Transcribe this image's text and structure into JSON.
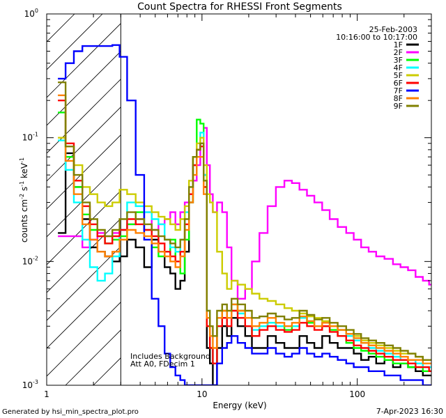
{
  "chart_data": {
    "type": "line",
    "title": "Count Spectra for RHESSI Front Segments",
    "xlabel": "Energy (keV)",
    "ylabel": "counts cm",
    "ylabel_sup1": "-2",
    "ylabel_mid": " s",
    "ylabel_sup2": "-1",
    "ylabel_mid2": " keV",
    "ylabel_sup3": "-1",
    "x_scale": "log",
    "y_scale": "log",
    "xlim": [
      1,
      300
    ],
    "ylim": [
      0.001,
      1
    ],
    "x_tick_labels": [
      {
        "value": 1,
        "text": "1"
      },
      {
        "value": 10,
        "text": "10"
      },
      {
        "value": 100,
        "text": "100"
      }
    ],
    "y_tick_labels": [
      {
        "value": 1,
        "base": "10",
        "exp": "0"
      },
      {
        "value": 0.1,
        "base": "10",
        "exp": "-1"
      },
      {
        "value": 0.01,
        "base": "10",
        "exp": "-2"
      },
      {
        "value": 0.001,
        "base": "10",
        "exp": "-3"
      }
    ],
    "date": "25-Feb-2003",
    "time_range": "10:16:00 to 10:17:00",
    "shaded_region_max_kev": 3,
    "annotations": [
      "Includes Background",
      "Att A0, FDecim 1"
    ],
    "footer_left": "Generated by hsi_min_spectra_plot.pro",
    "footer_right": "7-Apr-2023 16:30",
    "energies": [
      1.25,
      1.4,
      1.6,
      1.8,
      2.0,
      2.25,
      2.5,
      2.8,
      3.1,
      3.5,
      4.0,
      4.5,
      5.0,
      5.5,
      6.0,
      6.5,
      7.0,
      7.5,
      8.0,
      8.5,
      9.0,
      9.5,
      10.0,
      10.5,
      11.0,
      11.5,
      12.0,
      13,
      14,
      15,
      16,
      18,
      20,
      22,
      25,
      28,
      32,
      36,
      40,
      45,
      50,
      56,
      63,
      70,
      80,
      90,
      100,
      112,
      125,
      140,
      160,
      180,
      200,
      225,
      250,
      280,
      300
    ],
    "series": [
      {
        "name": "1F",
        "color": "#000000",
        "values": [
          0.017,
          0.075,
          0.04,
          0.022,
          0.013,
          0.012,
          0.011,
          0.01,
          0.011,
          0.015,
          0.013,
          0.009,
          0.015,
          0.012,
          0.009,
          0.008,
          0.006,
          0.007,
          0.012,
          0.03,
          0.06,
          0.08,
          0.09,
          0.05,
          0.002,
          0.0015,
          0.001,
          0.002,
          0.003,
          0.0025,
          0.0035,
          0.003,
          0.0025,
          0.002,
          0.002,
          0.0025,
          0.0022,
          0.002,
          0.002,
          0.0025,
          0.0022,
          0.002,
          0.0025,
          0.0022,
          0.002,
          0.002,
          0.0018,
          0.0016,
          0.0017,
          0.0015,
          0.0016,
          0.0014,
          0.0015,
          0.0014,
          0.0013,
          0.0012,
          0.0012
        ]
      },
      {
        "name": "2F",
        "color": "#ff00ff",
        "values": [
          0.016,
          0.016,
          0.016,
          0.013,
          0.015,
          0.017,
          0.016,
          0.017,
          0.018,
          0.02,
          0.022,
          0.025,
          0.018,
          0.02,
          0.022,
          0.025,
          0.02,
          0.025,
          0.03,
          0.035,
          0.045,
          0.06,
          0.09,
          0.12,
          0.06,
          0.035,
          0.025,
          0.03,
          0.025,
          0.013,
          0.007,
          0.005,
          0.006,
          0.01,
          0.017,
          0.028,
          0.04,
          0.045,
          0.043,
          0.038,
          0.034,
          0.03,
          0.026,
          0.022,
          0.019,
          0.017,
          0.015,
          0.013,
          0.012,
          0.011,
          0.0105,
          0.0095,
          0.009,
          0.0085,
          0.0075,
          0.007,
          0.0065
        ]
      },
      {
        "name": "3F",
        "color": "#00ff00",
        "values": [
          0.16,
          0.07,
          0.04,
          0.024,
          0.018,
          0.016,
          0.014,
          0.015,
          0.016,
          0.02,
          0.025,
          0.018,
          0.013,
          0.011,
          0.012,
          0.015,
          0.01,
          0.008,
          0.015,
          0.03,
          0.07,
          0.14,
          0.13,
          0.04,
          0.003,
          0.002,
          0.0015,
          0.003,
          0.004,
          0.0035,
          0.0045,
          0.004,
          0.003,
          0.0025,
          0.003,
          0.0032,
          0.003,
          0.0028,
          0.003,
          0.0035,
          0.0032,
          0.003,
          0.003,
          0.0028,
          0.0025,
          0.0022,
          0.002,
          0.0019,
          0.0018,
          0.0017,
          0.0016,
          0.0015,
          0.0015,
          0.0014,
          0.0014,
          0.0013,
          0.0013
        ]
      },
      {
        "name": "4F",
        "color": "#00ffff",
        "values": [
          0.095,
          0.055,
          0.03,
          0.015,
          0.009,
          0.007,
          0.008,
          0.011,
          0.018,
          0.03,
          0.028,
          0.025,
          0.022,
          0.02,
          0.015,
          0.013,
          0.012,
          0.015,
          0.025,
          0.04,
          0.06,
          0.09,
          0.11,
          0.05,
          0.004,
          0.002,
          0.0015,
          0.003,
          0.0035,
          0.003,
          0.004,
          0.0038,
          0.003,
          0.0028,
          0.003,
          0.0032,
          0.003,
          0.003,
          0.003,
          0.0035,
          0.0033,
          0.003,
          0.0032,
          0.003,
          0.0028,
          0.0025,
          0.0023,
          0.0022,
          0.002,
          0.0019,
          0.0018,
          0.0017,
          0.0016,
          0.0016,
          0.0015,
          0.0014,
          0.0014
        ]
      },
      {
        "name": "5F",
        "color": "#cccc00",
        "values": [
          0.1,
          0.085,
          0.06,
          0.04,
          0.035,
          0.03,
          0.028,
          0.03,
          0.038,
          0.035,
          0.03,
          0.028,
          0.025,
          0.023,
          0.022,
          0.02,
          0.018,
          0.022,
          0.028,
          0.045,
          0.07,
          0.09,
          0.1,
          0.06,
          0.035,
          0.03,
          0.025,
          0.012,
          0.008,
          0.006,
          0.007,
          0.0065,
          0.006,
          0.0055,
          0.005,
          0.0048,
          0.0045,
          0.0042,
          0.004,
          0.0038,
          0.0036,
          0.0035,
          0.0033,
          0.003,
          0.0028,
          0.0026,
          0.0025,
          0.0023,
          0.0022,
          0.0021,
          0.002,
          0.0019,
          0.0018,
          0.0018,
          0.0017,
          0.0016,
          0.0016
        ]
      },
      {
        "name": "6F",
        "color": "#ff0000",
        "values": [
          0.2,
          0.09,
          0.045,
          0.028,
          0.02,
          0.016,
          0.014,
          0.016,
          0.018,
          0.022,
          0.02,
          0.018,
          0.016,
          0.014,
          0.012,
          0.011,
          0.01,
          0.012,
          0.02,
          0.035,
          0.06,
          0.08,
          0.085,
          0.04,
          0.003,
          0.002,
          0.0015,
          0.003,
          0.0035,
          0.003,
          0.004,
          0.0035,
          0.003,
          0.0025,
          0.0028,
          0.003,
          0.0028,
          0.0027,
          0.0028,
          0.0032,
          0.003,
          0.0028,
          0.003,
          0.0027,
          0.0025,
          0.0023,
          0.0021,
          0.002,
          0.0019,
          0.0018,
          0.0017,
          0.0016,
          0.0016,
          0.0015,
          0.0014,
          0.0014,
          0.0013
        ]
      },
      {
        "name": "7F",
        "color": "#0000ff",
        "values": [
          0.3,
          0.4,
          0.5,
          0.55,
          0.55,
          0.55,
          0.55,
          0.56,
          0.45,
          0.2,
          0.05,
          0.015,
          0.005,
          0.003,
          0.0018,
          0.0014,
          0.0012,
          0.0011,
          0.001,
          0.001,
          0.001,
          0.001,
          0.001,
          0.001,
          0.001,
          0.001,
          0.001,
          0.0015,
          0.002,
          0.0022,
          0.0025,
          0.0022,
          0.002,
          0.0018,
          0.0018,
          0.002,
          0.0018,
          0.0017,
          0.0018,
          0.002,
          0.0018,
          0.0017,
          0.0018,
          0.0017,
          0.0016,
          0.0015,
          0.0014,
          0.0014,
          0.0013,
          0.0013,
          0.0012,
          0.0012,
          0.0011,
          0.0011,
          0.0011,
          0.001,
          0.001
        ]
      },
      {
        "name": "8F",
        "color": "#ff8000",
        "values": [
          0.22,
          0.065,
          0.035,
          0.02,
          0.015,
          0.012,
          0.011,
          0.012,
          0.015,
          0.018,
          0.017,
          0.016,
          0.014,
          0.012,
          0.011,
          0.01,
          0.009,
          0.011,
          0.018,
          0.03,
          0.05,
          0.07,
          0.07,
          0.035,
          0.0035,
          0.0025,
          0.002,
          0.0035,
          0.004,
          0.0035,
          0.0045,
          0.004,
          0.0035,
          0.003,
          0.0032,
          0.0035,
          0.0032,
          0.003,
          0.0032,
          0.0036,
          0.0033,
          0.003,
          0.0032,
          0.003,
          0.0028,
          0.0026,
          0.0024,
          0.0022,
          0.0021,
          0.002,
          0.0019,
          0.0018,
          0.0017,
          0.0016,
          0.0016,
          0.0015,
          0.0015
        ]
      },
      {
        "name": "9F",
        "color": "#808000",
        "values": [
          0.28,
          0.085,
          0.05,
          0.03,
          0.022,
          0.018,
          0.016,
          0.018,
          0.022,
          0.025,
          0.022,
          0.02,
          0.018,
          0.016,
          0.015,
          0.014,
          0.013,
          0.015,
          0.022,
          0.04,
          0.07,
          0.08,
          0.09,
          0.045,
          0.004,
          0.003,
          0.0025,
          0.004,
          0.0045,
          0.004,
          0.005,
          0.0045,
          0.004,
          0.0035,
          0.0036,
          0.0038,
          0.0036,
          0.0034,
          0.0035,
          0.004,
          0.0037,
          0.0034,
          0.0035,
          0.0032,
          0.003,
          0.0028,
          0.0026,
          0.0024,
          0.0023,
          0.0022,
          0.0021,
          0.002,
          0.0019,
          0.0018,
          0.0017,
          0.0016,
          0.0016
        ]
      }
    ]
  }
}
